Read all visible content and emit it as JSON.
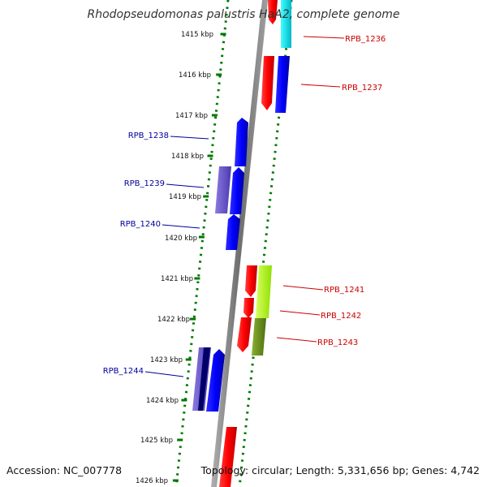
{
  "title": "Rhodopseudomonas palustris HaA2, complete genome",
  "accession": "Accession: NC_007778",
  "topology": "Topology: circular; Length: 5,331,656 bp; Genes: 4,742",
  "colors": {
    "forward_label": "#cc0000",
    "reverse_label": "#000099",
    "tick": "#007700",
    "backbone": "#888888"
  },
  "kbp_ticks": [
    {
      "label": "1415 kbp",
      "kbp": 1415
    },
    {
      "label": "1416 kbp",
      "kbp": 1416
    },
    {
      "label": "1417 kbp",
      "kbp": 1417
    },
    {
      "label": "1418 kbp",
      "kbp": 1418
    },
    {
      "label": "1419 kbp",
      "kbp": 1419
    },
    {
      "label": "1420 kbp",
      "kbp": 1420
    },
    {
      "label": "1421 kbp",
      "kbp": 1421
    },
    {
      "label": "1422 kbp",
      "kbp": 1422
    },
    {
      "label": "1423 kbp",
      "kbp": 1423
    },
    {
      "label": "1424 kbp",
      "kbp": 1424
    },
    {
      "label": "1425 kbp",
      "kbp": 1425
    },
    {
      "label": "1426 kbp",
      "kbp": 1426
    }
  ],
  "gene_labels": [
    {
      "name": "RPB_1236",
      "strand": "forward"
    },
    {
      "name": "RPB_1237",
      "strand": "forward"
    },
    {
      "name": "RPB_1238",
      "strand": "reverse"
    },
    {
      "name": "RPB_1239",
      "strand": "reverse"
    },
    {
      "name": "RPB_1240",
      "strand": "reverse"
    },
    {
      "name": "RPB_1241",
      "strand": "forward"
    },
    {
      "name": "RPB_1242",
      "strand": "forward"
    },
    {
      "name": "RPB_1243",
      "strand": "forward"
    },
    {
      "name": "RPB_1244",
      "strand": "reverse"
    }
  ]
}
